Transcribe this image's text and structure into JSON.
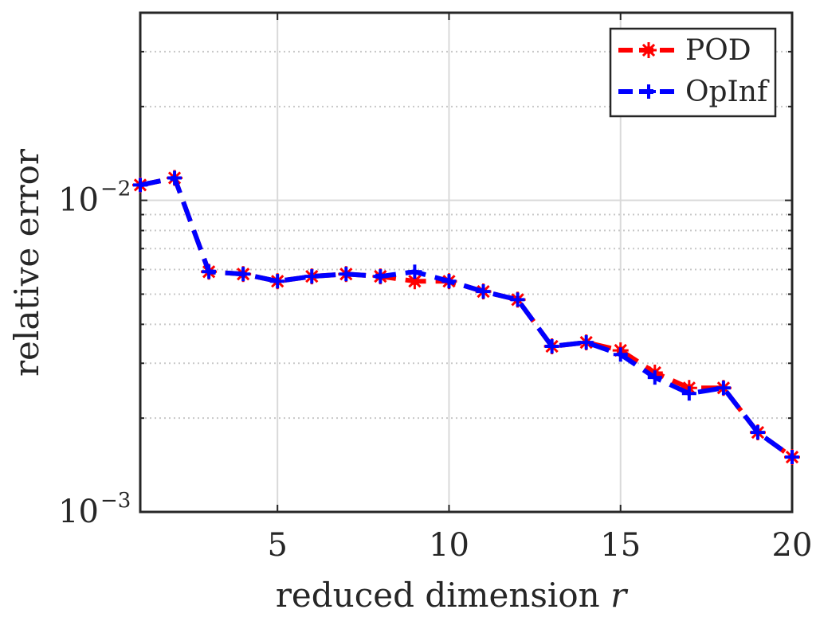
{
  "chart_data": {
    "type": "line",
    "xlabel": "reduced dimension",
    "xlabel_var": "r",
    "ylabel": "relative error",
    "xlim": [
      1,
      20
    ],
    "ylim": [
      0.001,
      0.04
    ],
    "y_scale": "log",
    "grid": true,
    "legend_position": "top-right",
    "x_ticks": [
      5,
      10,
      15,
      20
    ],
    "y_ticks": [
      {
        "value": 0.001,
        "base": "10",
        "exp": "−3"
      },
      {
        "value": 0.01,
        "base": "10",
        "exp": "−2"
      }
    ],
    "x": [
      1,
      2,
      3,
      4,
      5,
      6,
      7,
      8,
      9,
      10,
      11,
      12,
      13,
      14,
      15,
      16,
      17,
      18,
      19,
      20
    ],
    "series": [
      {
        "name": "POD",
        "color": "#ff0000",
        "line": "dashed",
        "marker": "star",
        "values": [
          0.0112,
          0.0118,
          0.0059,
          0.0058,
          0.0055,
          0.0057,
          0.0058,
          0.0057,
          0.0055,
          0.0055,
          0.0051,
          0.0048,
          0.0034,
          0.0035,
          0.0033,
          0.0028,
          0.0025,
          0.0025,
          0.0018,
          0.0015
        ]
      },
      {
        "name": "OpInf",
        "color": "#0000ff",
        "line": "dashed",
        "marker": "plus",
        "values": [
          0.0112,
          0.0118,
          0.0059,
          0.0058,
          0.0055,
          0.0057,
          0.0058,
          0.0057,
          0.0059,
          0.0055,
          0.0051,
          0.0048,
          0.0034,
          0.0035,
          0.0032,
          0.0027,
          0.0024,
          0.0025,
          0.0018,
          0.0015
        ]
      }
    ]
  }
}
